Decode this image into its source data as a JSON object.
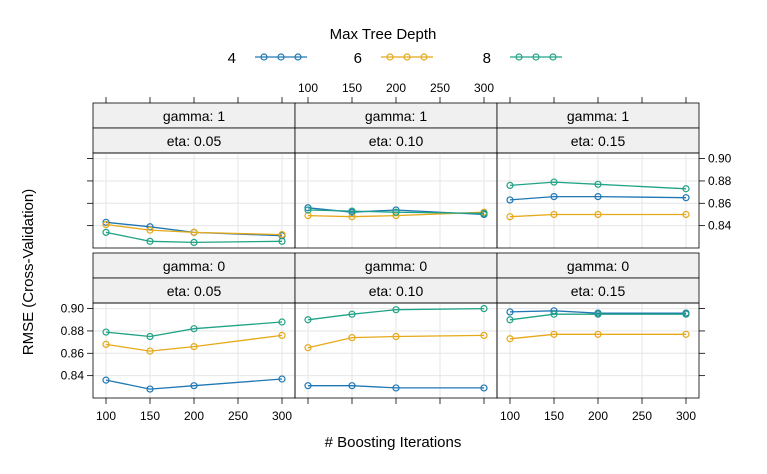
{
  "chart_data": {
    "type": "line",
    "xlabel": "# Boosting Iterations",
    "ylabel": "RMSE (Cross-Validation)",
    "x_ticks": [
      100,
      150,
      200,
      250,
      300
    ],
    "y_ticks": [
      0.84,
      0.86,
      0.88,
      0.9
    ],
    "y_tick_labels": [
      "0.84",
      "0.86",
      "0.88",
      "0.90"
    ],
    "xlim": [
      90,
      310
    ],
    "ylim": [
      0.82,
      0.905
    ],
    "grid": true,
    "legend": {
      "title": "Max Tree Depth",
      "placement": "top",
      "entries": [
        {
          "label": "4",
          "color": "#1F77B4"
        },
        {
          "label": "6",
          "color": "#E6A919"
        },
        {
          "label": "8",
          "color": "#20A386"
        }
      ]
    },
    "x": [
      100,
      150,
      200,
      300
    ],
    "panels": [
      {
        "gamma_label": "gamma: 1",
        "eta_label": "eta: 0.05",
        "series": [
          {
            "name": "4",
            "values": [
              0.843,
              0.839,
              0.834,
              0.831
            ]
          },
          {
            "name": "6",
            "values": [
              0.841,
              0.836,
              0.834,
              0.832
            ]
          },
          {
            "name": "8",
            "values": [
              0.834,
              0.826,
              0.825,
              0.826
            ]
          }
        ]
      },
      {
        "gamma_label": "gamma: 1",
        "eta_label": "eta: 0.10",
        "series": [
          {
            "name": "4",
            "values": [
              0.856,
              0.852,
              0.854,
              0.85
            ]
          },
          {
            "name": "6",
            "values": [
              0.849,
              0.848,
              0.849,
              0.852
            ]
          },
          {
            "name": "8",
            "values": [
              0.854,
              0.853,
              0.852,
              0.851
            ]
          }
        ]
      },
      {
        "gamma_label": "gamma: 1",
        "eta_label": "eta: 0.15",
        "series": [
          {
            "name": "4",
            "values": [
              0.863,
              0.866,
              0.866,
              0.865
            ]
          },
          {
            "name": "6",
            "values": [
              0.848,
              0.85,
              0.85,
              0.85
            ]
          },
          {
            "name": "8",
            "values": [
              0.876,
              0.879,
              0.877,
              0.873
            ]
          }
        ]
      },
      {
        "gamma_label": "gamma: 0",
        "eta_label": "eta: 0.05",
        "series": [
          {
            "name": "4",
            "values": [
              0.836,
              0.828,
              0.831,
              0.837
            ]
          },
          {
            "name": "6",
            "values": [
              0.868,
              0.862,
              0.866,
              0.876
            ]
          },
          {
            "name": "8",
            "values": [
              0.879,
              0.875,
              0.882,
              0.888
            ]
          }
        ]
      },
      {
        "gamma_label": "gamma: 0",
        "eta_label": "eta: 0.10",
        "series": [
          {
            "name": "4",
            "values": [
              0.831,
              0.831,
              0.829,
              0.829
            ]
          },
          {
            "name": "6",
            "values": [
              0.865,
              0.874,
              0.875,
              0.876
            ]
          },
          {
            "name": "8",
            "values": [
              0.89,
              0.895,
              0.899,
              0.9
            ]
          }
        ]
      },
      {
        "gamma_label": "gamma: 0",
        "eta_label": "eta: 0.15",
        "series": [
          {
            "name": "4",
            "values": [
              0.897,
              0.898,
              0.896,
              0.896
            ]
          },
          {
            "name": "6",
            "values": [
              0.873,
              0.877,
              0.877,
              0.877
            ]
          },
          {
            "name": "8",
            "values": [
              0.89,
              0.895,
              0.895,
              0.895
            ]
          }
        ]
      }
    ]
  }
}
